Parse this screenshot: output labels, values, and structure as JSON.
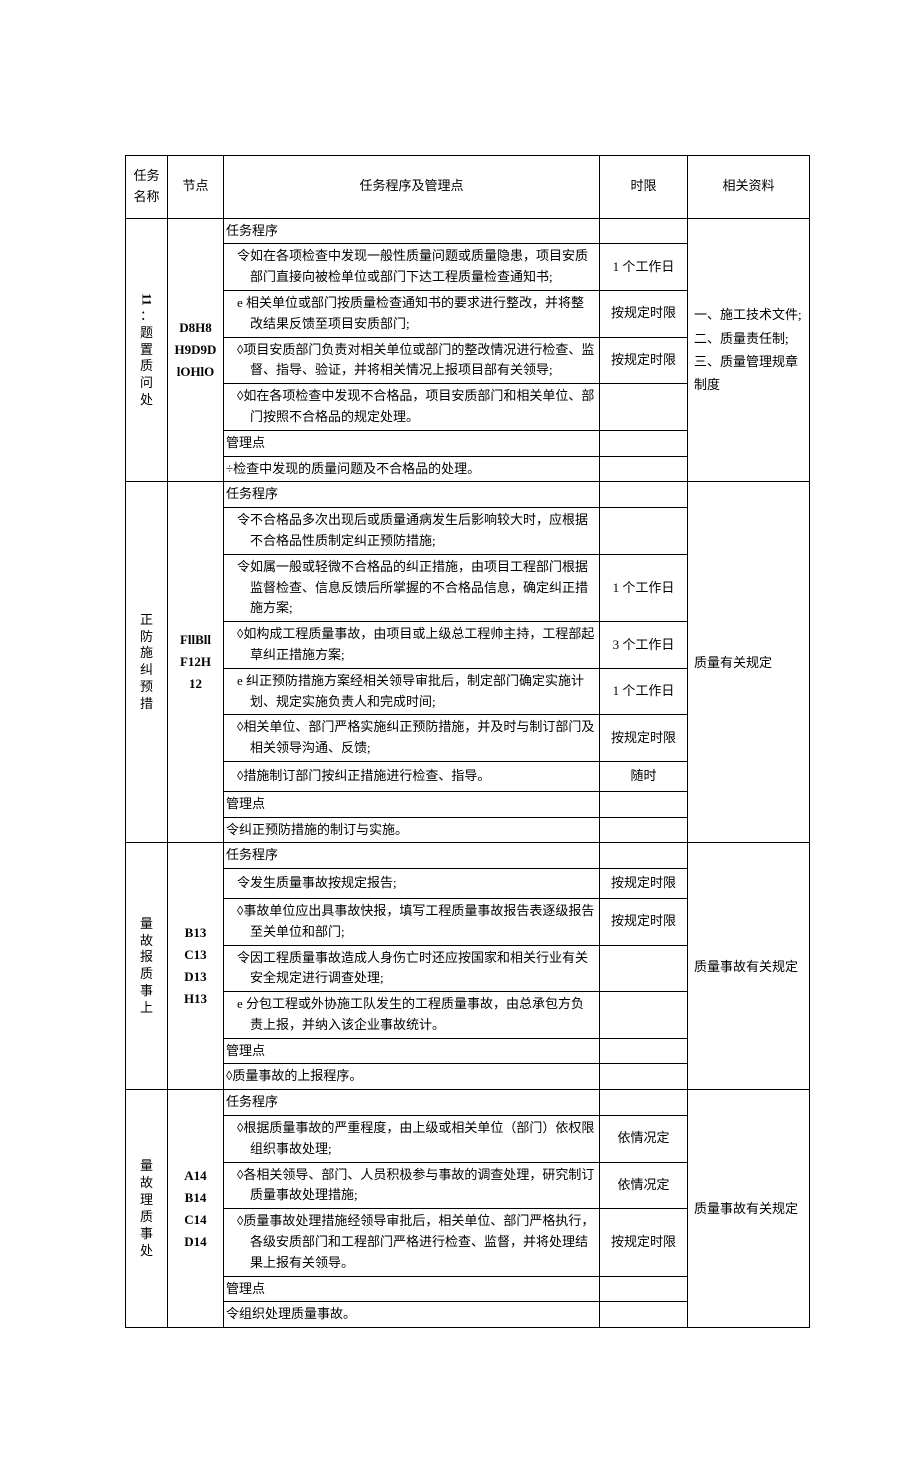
{
  "header": {
    "name": "任务名称",
    "node": "节点",
    "task": "任务程序及管理点",
    "time": "时限",
    "ref": "相关资料"
  },
  "sections": [
    {
      "name": "：题置质问处",
      "name_prefix": "11",
      "node": "D8H8\nH9D9D\nlOHlO",
      "ref_lines": [
        "一、施工技术文件;",
        "二、质量责任制;",
        "三、质量管理规章制度"
      ],
      "rows": [
        {
          "text": "任务程序",
          "time": "",
          "type": "plain"
        },
        {
          "text": "令如在各项检查中发现一般性质量问题或质量隐患，项目安质部门直接向被检单位或部门下达工程质量检查通知书;",
          "time": "1 个工作日",
          "type": "ind"
        },
        {
          "text": "e 相关单位或部门按质量检查通知书的要求进行整改，并将整改结果反馈至项目安质部门;",
          "time": "按规定时限",
          "type": "ind"
        },
        {
          "text": "◊项目安质部门负责对相关单位或部门的整改情况进行检查、监督、指导、验证，并将相关情况上报项目部有关领导;",
          "time": "按规定时限",
          "type": "ind"
        },
        {
          "text": "◊如在各项检查中发现不合格品，项目安质部门和相关单位、部门按照不合格品的规定处理。",
          "time": "",
          "type": "ind"
        },
        {
          "text": "管理点",
          "time": "",
          "type": "plain"
        },
        {
          "text": "÷检查中发现的质量问题及不合格品的处理。",
          "time": "",
          "type": "plain"
        }
      ]
    },
    {
      "name": "正防施纠预措",
      "node": "FllBll\nF12H\n12",
      "ref_lines": [
        "质量有关规定"
      ],
      "rows": [
        {
          "text": "任务程序",
          "time": "",
          "type": "plain"
        },
        {
          "text": "令不合格品多次出现后或质量通病发生后影响较大时，应根据不合格品性质制定纠正预防措施;",
          "time": "",
          "type": "ind"
        },
        {
          "text": "令如属一般或轻微不合格品的纠正措施，由项目工程部门根据监督检查、信息反馈后所掌握的不合格品信息，确定纠正措施方案;",
          "time": "1 个工作日",
          "type": "ind"
        },
        {
          "text": "◊如构成工程质量事故，由项目或上级总工程帅主持，工程部起草纠正措施方案;",
          "time": "3 个工作日",
          "type": "ind"
        },
        {
          "text": "e 纠正预防措施方案经相关领导审批后，制定部门确定实施计划、规定实施负责人和完成时间;",
          "time": "1 个工作日",
          "type": "ind"
        },
        {
          "text": "◊相关单位、部门严格实施纠正预防措施，并及时与制订部门及相关领导沟通、反馈;",
          "time": "按规定时限",
          "type": "ind"
        },
        {
          "text": "◊措施制订部门按纠正措施进行检查、指导。",
          "time": "随时",
          "type": "ind"
        },
        {
          "text": "管理点",
          "time": "",
          "type": "plain"
        },
        {
          "text": "令纠正预防措施的制订与实施。",
          "time": "",
          "type": "plain"
        }
      ]
    },
    {
      "name": "量故报质事上",
      "node": "B13\nC13\nD13\nH13",
      "ref_lines": [
        "质量事故有关规定"
      ],
      "rows": [
        {
          "text": "任务程序",
          "time": "",
          "type": "plain"
        },
        {
          "text": "令发生质量事故按规定报告;",
          "time": "按规定时限",
          "type": "ind"
        },
        {
          "text": "◊事故单位应出具事故快报，填写工程质量事故报告表逐级报告至关单位和部门;",
          "time": "按规定时限",
          "type": "ind"
        },
        {
          "text": "令因工程质量事故造成人身伤亡时还应按国家和相关行业有关安全规定进行调查处理;",
          "time": "",
          "type": "ind"
        },
        {
          "text": "e 分包工程或外协施工队发生的工程质量事故，由总承包方负责上报，并纳入该企业事故统计。",
          "time": "",
          "type": "ind"
        },
        {
          "text": "管理点",
          "time": "",
          "type": "plain"
        },
        {
          "text": "◊质量事故的上报程序。",
          "time": "",
          "type": "plain"
        }
      ]
    },
    {
      "name": "量故理质事处",
      "node": "A14\nB14\nC14\nD14",
      "ref_lines": [
        "质量事故有关规定"
      ],
      "rows": [
        {
          "text": "任务程序",
          "time": "",
          "type": "plain"
        },
        {
          "text": "◊根据质量事故的严重程度，由上级或相关单位（部门）依权限组织事故处理;",
          "time": "依情况定",
          "type": "ind"
        },
        {
          "text": "◊各相关领导、部门、人员积极参与事故的调查处理，研究制订质量事故处理措施;",
          "time": "依情况定",
          "type": "ind"
        },
        {
          "text": "◊质量事故处理措施经领导审批后，相关单位、部门严格执行，各级安质部门和工程部门严格进行检查、监督，并将处理结果上报有关领导。",
          "time": "按规定时限",
          "type": "ind"
        },
        {
          "text": "管理点",
          "time": "",
          "type": "plain"
        },
        {
          "text": "令组织处理质量事故。",
          "time": "",
          "type": "plain"
        }
      ]
    }
  ]
}
